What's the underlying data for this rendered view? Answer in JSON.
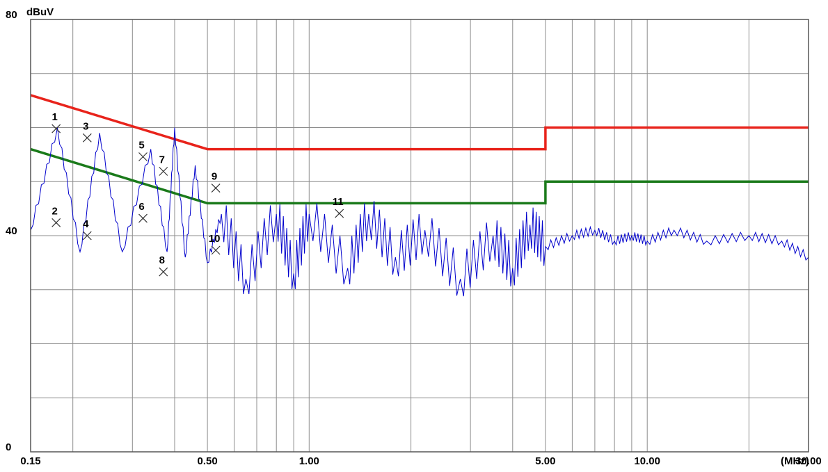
{
  "chart_data": {
    "type": "line",
    "ylabel": "dBuV",
    "xunit": "(MHz)",
    "xscale": "log",
    "xlim": [
      0.15,
      30
    ],
    "ylim": [
      0,
      80
    ],
    "grid": true,
    "y_ticks": [
      {
        "value": 0,
        "label": "0"
      },
      {
        "value": 40,
        "label": "40"
      },
      {
        "value": 80,
        "label": "80"
      }
    ],
    "x_ticks": [
      {
        "value": 0.15,
        "label": "0.15"
      },
      {
        "value": 0.5,
        "label": "0.50"
      },
      {
        "value": 1,
        "label": "1.00"
      },
      {
        "value": 5,
        "label": "5.00"
      },
      {
        "value": 10,
        "label": "10.00"
      },
      {
        "value": 30,
        "label": "30.00"
      }
    ],
    "series": [
      {
        "color": "#e8231b",
        "points": [
          [
            0.15,
            66
          ],
          [
            0.5,
            56
          ],
          [
            5,
            56
          ],
          [
            5,
            60
          ],
          [
            30,
            60
          ]
        ]
      },
      {
        "color": "#1a7a1a",
        "points": [
          [
            0.15,
            56
          ],
          [
            0.5,
            46
          ],
          [
            5,
            46
          ],
          [
            5,
            50
          ],
          [
            30,
            50
          ]
        ]
      },
      {
        "color": "#0000cc",
        "points": [
          [
            0.15,
            41
          ],
          [
            0.18,
            60
          ],
          [
            0.21,
            37
          ],
          [
            0.24,
            59
          ],
          [
            0.28,
            37
          ],
          [
            0.34,
            56
          ],
          [
            0.38,
            37
          ],
          [
            0.4,
            60
          ],
          [
            0.43,
            36
          ],
          [
            0.46,
            53
          ],
          [
            0.5,
            35
          ],
          [
            0.55,
            44
          ],
          [
            0.65,
            32
          ],
          [
            0.8,
            44
          ],
          [
            0.9,
            33
          ],
          [
            1.0,
            44
          ],
          [
            1.3,
            34
          ],
          [
            1.5,
            44
          ],
          [
            1.8,
            36
          ],
          [
            2.2,
            41
          ],
          [
            2.8,
            32
          ],
          [
            3.5,
            40
          ],
          [
            4.0,
            34
          ],
          [
            4.5,
            42
          ],
          [
            5.0,
            38
          ],
          [
            6.0,
            40
          ],
          [
            7.0,
            41
          ],
          [
            8.0,
            39
          ],
          [
            9.0,
            40
          ],
          [
            10.0,
            39
          ],
          [
            12.0,
            41
          ],
          [
            15.0,
            39
          ],
          [
            20.0,
            40
          ],
          [
            25.0,
            39
          ],
          [
            30.0,
            36
          ]
        ]
      }
    ],
    "markers": [
      {
        "label": "1",
        "x": 0.1785,
        "y": 59.8
      },
      {
        "label": "2",
        "x": 0.1785,
        "y": 42.4
      },
      {
        "label": "3",
        "x": 0.2205,
        "y": 58.1
      },
      {
        "label": "4",
        "x": 0.2205,
        "y": 40.0
      },
      {
        "label": "5",
        "x": 0.3225,
        "y": 54.6
      },
      {
        "label": "6",
        "x": 0.3225,
        "y": 43.2
      },
      {
        "label": "7",
        "x": 0.3705,
        "y": 51.9
      },
      {
        "label": "8",
        "x": 0.3705,
        "y": 33.3
      },
      {
        "label": "9",
        "x": 0.5295,
        "y": 48.8
      },
      {
        "label": "10",
        "x": 0.5295,
        "y": 37.3
      },
      {
        "label": "11",
        "x": 1.2285,
        "y": 44.1
      }
    ]
  }
}
